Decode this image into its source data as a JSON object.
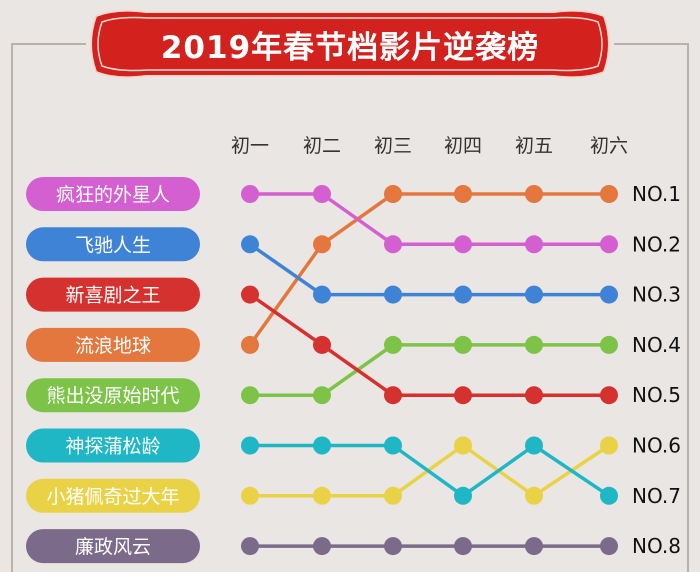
{
  "title": "2019年春节档影片逆袭榜",
  "chart_data": {
    "type": "line",
    "title": "2019年春节档影片逆袭榜",
    "categories": [
      "初一",
      "初二",
      "初三",
      "初四",
      "初五",
      "初六"
    ],
    "rank_labels": [
      "NO.1",
      "NO.2",
      "NO.3",
      "NO.4",
      "NO.5",
      "NO.6",
      "NO.7",
      "NO.8"
    ],
    "series": [
      {
        "name": "疯狂的外星人",
        "color": "#d35fd0",
        "ranks": [
          1,
          1,
          2,
          2,
          2,
          2
        ]
      },
      {
        "name": "飞驰人生",
        "color": "#3f83d6",
        "ranks": [
          2,
          3,
          3,
          3,
          3,
          3
        ]
      },
      {
        "name": "新喜剧之王",
        "color": "#d5312e",
        "ranks": [
          3,
          4,
          5,
          5,
          5,
          5
        ]
      },
      {
        "name": "流浪地球",
        "color": "#e4773d",
        "ranks": [
          4,
          2,
          1,
          1,
          1,
          1
        ]
      },
      {
        "name": "熊出没原始时代",
        "color": "#7cc348",
        "ranks": [
          5,
          5,
          4,
          4,
          4,
          4
        ]
      },
      {
        "name": "神探蒲松龄",
        "color": "#1fb6c6",
        "ranks": [
          6,
          6,
          6,
          7,
          6,
          7
        ]
      },
      {
        "name": "小猪佩奇过大年",
        "color": "#ead247",
        "ranks": [
          7,
          7,
          7,
          6,
          7,
          6
        ]
      },
      {
        "name": "廉政风云",
        "color": "#7b6a8a",
        "ranks": [
          8,
          8,
          8,
          8,
          8,
          8
        ]
      }
    ],
    "y_axis": "rank (1 = top)",
    "legend": "left"
  },
  "colors": {
    "banner": "#d3221e",
    "banner_border": "#b81916",
    "background": "#e9e6e3"
  }
}
